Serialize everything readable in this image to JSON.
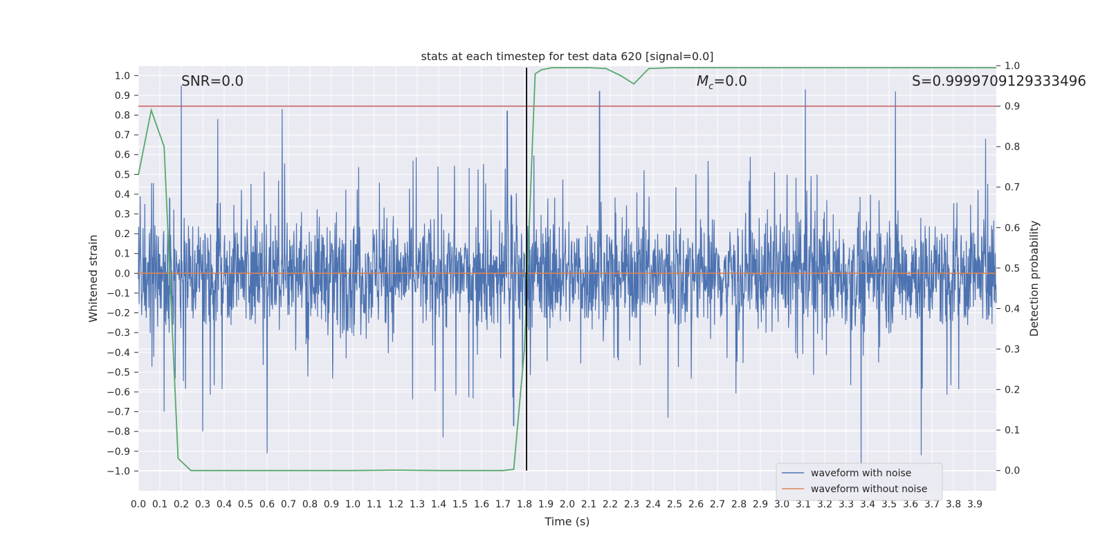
{
  "chart_data": {
    "type": "line",
    "title": "stats at each timestep for test data 620 [signal=0.0]",
    "xlabel": "Time (s)",
    "ylabel": "Whitened strain",
    "y2label": "Detection probability",
    "xlim": [
      0.0,
      4.0
    ],
    "ylim": [
      -1.1,
      1.05
    ],
    "y2lim": [
      -0.05,
      1.0
    ],
    "x_ticks": [
      "0.0",
      "0.1",
      "0.2",
      "0.3",
      "0.4",
      "0.5",
      "0.6",
      "0.7",
      "0.8",
      "0.9",
      "1.0",
      "1.1",
      "1.2",
      "1.3",
      "1.4",
      "1.5",
      "1.6",
      "1.7",
      "1.8",
      "1.9",
      "2.0",
      "2.1",
      "2.2",
      "2.3",
      "2.4",
      "2.5",
      "2.6",
      "2.7",
      "2.8",
      "2.9",
      "3.0",
      "3.1",
      "3.2",
      "3.3",
      "3.4",
      "3.5",
      "3.6",
      "3.7",
      "3.8",
      "3.9"
    ],
    "y_ticks": [
      "1.0",
      "0.9",
      "0.8",
      "0.7",
      "0.6",
      "0.5",
      "0.4",
      "0.3",
      "0.2",
      "0.1",
      "0.0",
      "−0.1",
      "−0.2",
      "−0.3",
      "−0.4",
      "−0.5",
      "−0.6",
      "−0.7",
      "−0.8",
      "−0.9",
      "−1.0"
    ],
    "y2_ticks": [
      "1.0",
      "0.9",
      "0.8",
      "0.7",
      "0.6",
      "0.5",
      "0.4",
      "0.3",
      "0.2",
      "0.1",
      "0.0"
    ],
    "annotations": {
      "snr": "SNR=0.0",
      "mc_symbol": "M",
      "mc_sub": "c",
      "mc_value": "=0.0",
      "s_value": "S=0.9999709129333496"
    },
    "threshold_y2": 0.9,
    "marker_x": 1.81,
    "noise_envelope": {
      "positive_typical": 0.35,
      "negative_typical": -0.4,
      "spikes": [
        {
          "x": 0.2,
          "y": 0.95
        },
        {
          "x": 0.37,
          "y": 0.78
        },
        {
          "x": 0.67,
          "y": 0.83
        },
        {
          "x": 1.72,
          "y": 0.82
        },
        {
          "x": 2.15,
          "y": 0.92
        },
        {
          "x": 3.11,
          "y": 0.93
        },
        {
          "x": 3.53,
          "y": 0.92
        },
        {
          "x": 3.95,
          "y": 0.68
        },
        {
          "x": 0.6,
          "y": -0.91
        },
        {
          "x": 0.3,
          "y": -0.8
        },
        {
          "x": 1.42,
          "y": -0.83
        },
        {
          "x": 3.37,
          "y": -0.97
        },
        {
          "x": 3.65,
          "y": -0.92
        },
        {
          "x": 1.75,
          "y": -0.77
        },
        {
          "x": 0.12,
          "y": -0.7
        },
        {
          "x": 2.47,
          "y": -0.73
        }
      ]
    },
    "series": [
      {
        "name": "waveform with noise",
        "color": "#4c72b0"
      },
      {
        "name": "waveform without noise",
        "color": "#dd8452",
        "x": [
          0.0,
          4.0
        ],
        "y": [
          0.0,
          0.0
        ]
      },
      {
        "name": "detection probability",
        "color": "#55a868",
        "axis": "right",
        "x": [
          0.0,
          0.06,
          0.12,
          0.185,
          0.245,
          0.3,
          0.6,
          1.0,
          1.2,
          1.4,
          1.7,
          1.75,
          1.8,
          1.85,
          1.88,
          1.93,
          2.0,
          2.1,
          2.18,
          2.25,
          2.31,
          2.38,
          2.5,
          3.0,
          3.5,
          4.0
        ],
        "y": [
          0.73,
          0.89,
          0.8,
          0.03,
          0.0,
          0.0,
          0.0,
          0.0,
          0.001,
          0.0,
          0.0,
          0.003,
          0.3,
          0.98,
          0.99,
          0.995,
          0.995,
          0.995,
          0.993,
          0.975,
          0.955,
          0.993,
          0.995,
          0.995,
          0.995,
          0.995
        ]
      }
    ],
    "legend": [
      "waveform with noise",
      "waveform without noise"
    ],
    "colors": {
      "axes_bg": "#eaeaf2",
      "grid": "#ffffff",
      "threshold": "#c44e52",
      "marker": "#000000"
    }
  }
}
